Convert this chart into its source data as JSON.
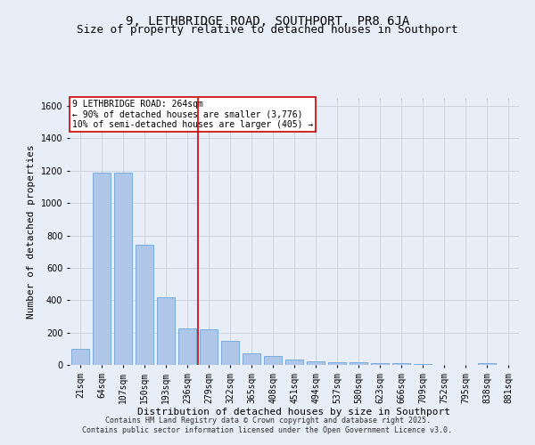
{
  "title": "9, LETHBRIDGE ROAD, SOUTHPORT, PR8 6JA",
  "subtitle": "Size of property relative to detached houses in Southport",
  "xlabel": "Distribution of detached houses by size in Southport",
  "ylabel": "Number of detached properties",
  "footer_line1": "Contains HM Land Registry data © Crown copyright and database right 2025.",
  "footer_line2": "Contains public sector information licensed under the Open Government Licence v3.0.",
  "categories": [
    "21sqm",
    "64sqm",
    "107sqm",
    "150sqm",
    "193sqm",
    "236sqm",
    "279sqm",
    "322sqm",
    "365sqm",
    "408sqm",
    "451sqm",
    "494sqm",
    "537sqm",
    "580sqm",
    "623sqm",
    "666sqm",
    "709sqm",
    "752sqm",
    "795sqm",
    "838sqm",
    "881sqm"
  ],
  "values": [
    100,
    1190,
    1190,
    740,
    420,
    225,
    220,
    150,
    70,
    55,
    35,
    20,
    15,
    15,
    10,
    10,
    5,
    0,
    0,
    10,
    0
  ],
  "bar_color": "#aec6e8",
  "bar_edge_color": "#5b9bd5",
  "annotation_line1": "9 LETHBRIDGE ROAD: 264sqm",
  "annotation_line2": "← 90% of detached houses are smaller (3,776)",
  "annotation_line3": "10% of semi-detached houses are larger (405) →",
  "annotation_box_color": "#ffffff",
  "annotation_box_edge_color": "#cc0000",
  "vline_x": 5.5,
  "vline_color": "#cc0000",
  "ylim": [
    0,
    1650
  ],
  "yticks": [
    0,
    200,
    400,
    600,
    800,
    1000,
    1200,
    1400,
    1600
  ],
  "grid_color": "#c8d0dc",
  "bg_color": "#e8eef7",
  "title_fontsize": 10,
  "subtitle_fontsize": 9,
  "axis_label_fontsize": 8,
  "tick_fontsize": 7,
  "annotation_fontsize": 7,
  "footer_fontsize": 6
}
